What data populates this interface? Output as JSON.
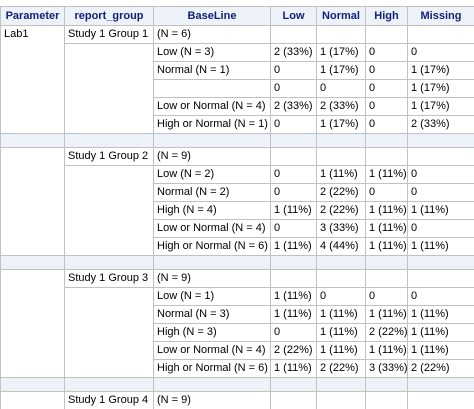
{
  "columns": [
    "Parameter",
    "report_group",
    "BaseLine",
    "Low",
    "Normal",
    "High",
    "Missing"
  ],
  "blocks": [
    {
      "parameter": "Lab1",
      "report_group": "Study 1 Group 1",
      "rows": [
        {
          "baseline": "(N = 6)",
          "low": "",
          "normal": "",
          "high": "",
          "missing": ""
        },
        {
          "baseline": "Low (N = 3)",
          "low": "2 (33%)",
          "normal": "1 (17%)",
          "high": "0",
          "missing": "0"
        },
        {
          "baseline": "Normal (N = 1)",
          "low": "0",
          "normal": "1 (17%)",
          "high": "0",
          "missing": "1 (17%)"
        },
        {
          "baseline": "",
          "low": "0",
          "normal": "0",
          "high": "0",
          "missing": "1 (17%)"
        },
        {
          "baseline": "Low or Normal (N = 4)",
          "low": "2 (33%)",
          "normal": "2 (33%)",
          "high": "0",
          "missing": "1 (17%)"
        },
        {
          "baseline": "High or Normal (N = 1)",
          "low": "0",
          "normal": "1 (17%)",
          "high": "0",
          "missing": "2 (33%)"
        }
      ]
    },
    {
      "parameter": "",
      "report_group": "Study 1 Group 2",
      "rows": [
        {
          "baseline": "(N = 9)",
          "low": "",
          "normal": "",
          "high": "",
          "missing": ""
        },
        {
          "baseline": "Low (N = 2)",
          "low": "0",
          "normal": "1 (11%)",
          "high": "1 (11%)",
          "missing": "0"
        },
        {
          "baseline": "Normal (N = 2)",
          "low": "0",
          "normal": "2 (22%)",
          "high": "0",
          "missing": "0"
        },
        {
          "baseline": "High (N = 4)",
          "low": "1 (11%)",
          "normal": "2 (22%)",
          "high": "1 (11%)",
          "missing": "1 (11%)"
        },
        {
          "baseline": "Low or Normal (N = 4)",
          "low": "0",
          "normal": "3 (33%)",
          "high": "1 (11%)",
          "missing": "0"
        },
        {
          "baseline": "High or Normal (N = 6)",
          "low": "1 (11%)",
          "normal": "4 (44%)",
          "high": "1 (11%)",
          "missing": "1 (11%)"
        }
      ]
    },
    {
      "parameter": "",
      "report_group": "Study 1 Group 3",
      "rows": [
        {
          "baseline": "(N = 9)",
          "low": "",
          "normal": "",
          "high": "",
          "missing": ""
        },
        {
          "baseline": "Low (N = 1)",
          "low": "1 (11%)",
          "normal": "0",
          "high": "0",
          "missing": "0"
        },
        {
          "baseline": "Normal (N = 3)",
          "low": "1 (11%)",
          "normal": "1 (11%)",
          "high": "1 (11%)",
          "missing": "1 (11%)"
        },
        {
          "baseline": "High (N = 3)",
          "low": "0",
          "normal": "1 (11%)",
          "high": "2 (22%)",
          "missing": "1 (11%)"
        },
        {
          "baseline": "Low or Normal (N = 4)",
          "low": "2 (22%)",
          "normal": "1 (11%)",
          "high": "1 (11%)",
          "missing": "1 (11%)"
        },
        {
          "baseline": "High or Normal (N = 6)",
          "low": "1 (11%)",
          "normal": "2 (22%)",
          "high": "3 (33%)",
          "missing": "2 (22%)"
        }
      ]
    }
  ],
  "partial_row": {
    "report_group": "Study 1 Group 4",
    "baseline": "(N = 9)"
  },
  "colors": {
    "header_bg": "#edf2f9",
    "header_text": "#112277",
    "border": "#c1c1c1",
    "separator_bg": "#edf2f9"
  }
}
